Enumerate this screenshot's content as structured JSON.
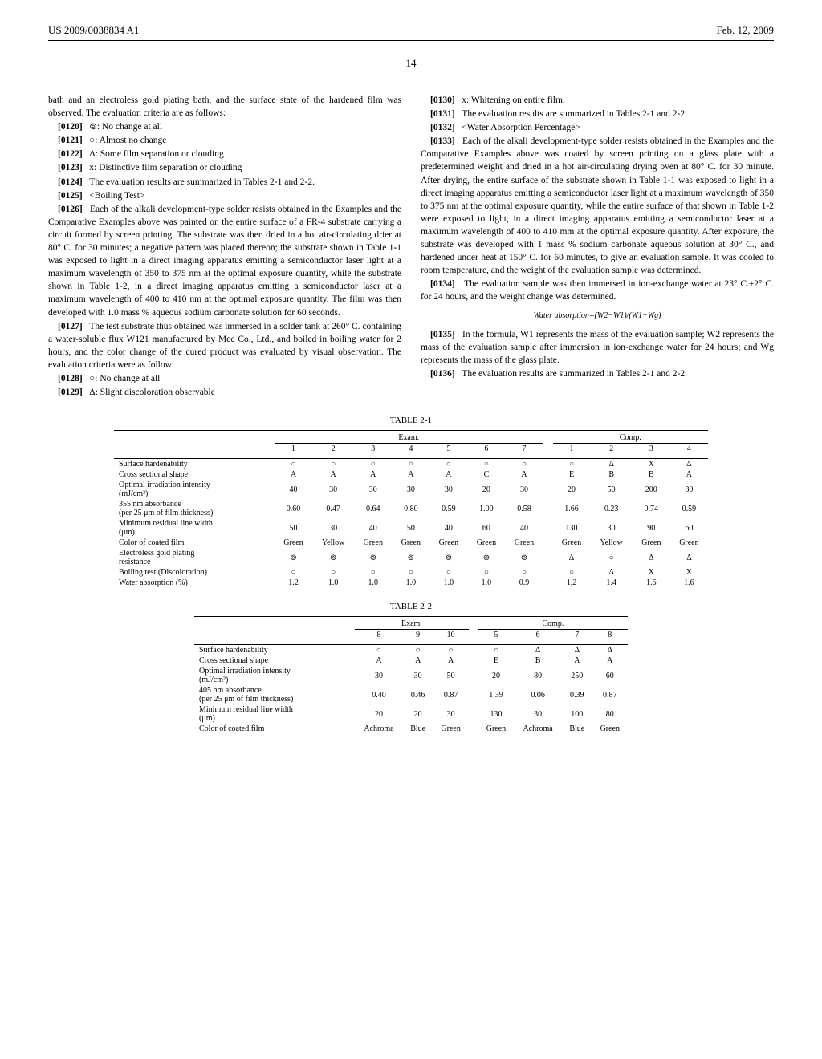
{
  "header": {
    "patent_no": "US 2009/0038834 A1",
    "date": "Feb. 12, 2009"
  },
  "page_number": "14",
  "left_col": {
    "p_intro": "bath and an electroless gold plating bath, and the surface state of the hardened film was observed. The evaluation criteria are as follows:",
    "p0120": {
      "num": "[0120]",
      "text": "⊚: No change at all"
    },
    "p0121": {
      "num": "[0121]",
      "text": "○: Almost no change"
    },
    "p0122": {
      "num": "[0122]",
      "text": "Δ: Some film separation or clouding"
    },
    "p0123": {
      "num": "[0123]",
      "text": "x: Distinctive film separation or clouding"
    },
    "p0124": {
      "num": "[0124]",
      "text": "The evaluation results are summarized in Tables 2-1 and 2-2."
    },
    "p0125": {
      "num": "[0125]",
      "text": "<Boiling Test>"
    },
    "p0126": {
      "num": "[0126]",
      "text": "Each of the alkali development-type solder resists obtained in the Examples and the Comparative Examples above was painted on the entire surface of a FR-4 substrate carrying a circuit formed by screen printing. The substrate was then dried in a hot air-circulating drier at 80° C. for 30 minutes; a negative pattern was placed thereon; the substrate shown in Table 1-1 was exposed to light in a direct imaging apparatus emitting a semiconductor laser light at a maximum wavelength of 350 to 375 nm at the optimal exposure quantity, while the substrate shown in Table 1-2, in a direct imaging apparatus emitting a semiconductor laser at a maximum wavelength of 400 to 410 nm at the optimal exposure quantity. The film was then developed with 1.0 mass % aqueous sodium carbonate solution for 60 seconds."
    },
    "p0127": {
      "num": "[0127]",
      "text": "The test substrate thus obtained was immersed in a solder tank at 260° C. containing a water-soluble flux W121 manufactured by Mec Co., Ltd., and boiled in boiling water for 2 hours, and the color change of the cured product was evaluated by visual observation. The evaluation criteria were as follow:"
    },
    "p0128": {
      "num": "[0128]",
      "text": "○: No change at all"
    },
    "p0129": {
      "num": "[0129]",
      "text": "Δ: Slight discoloration observable"
    }
  },
  "right_col": {
    "p0130": {
      "num": "[0130]",
      "text": "x: Whitening on entire film."
    },
    "p0131": {
      "num": "[0131]",
      "text": "The evaluation results are summarized in Tables 2-1 and 2-2."
    },
    "p0132": {
      "num": "[0132]",
      "text": "<Water Absorption Percentage>"
    },
    "p0133": {
      "num": "[0133]",
      "text": "Each of the alkali development-type solder resists obtained in the Examples and the Comparative Examples above was coated by screen printing on a glass plate with a predetermined weight and dried in a hot air-circulating drying oven at 80° C. for 30 minute. After drying, the entire surface of the substrate shown in Table 1-1 was exposed to light in a direct imaging apparatus emitting a semiconductor laser light at a maximum wavelength of 350 to 375 nm at the optimal exposure quantity, while the entire surface of that shown in Table 1-2 were exposed to light, in a direct imaging apparatus emitting a semiconductor laser at a maximum wavelength of 400 to 410 mm at the optimal exposure quantity. After exposure, the substrate was developed with 1 mass % sodium carbonate aqueous solution at 30° C., and hardened under heat at 150° C. for 60 minutes, to give an evaluation sample. It was cooled to room temperature, and the weight of the evaluation sample was determined."
    },
    "p0134": {
      "num": "[0134]",
      "text": "The evaluation sample was then immersed in ion-exchange water at 23° C.±2° C. for 24 hours, and the weight change was determined."
    },
    "formula": "Water absorption=(W2−W1)/(W1−Wg)",
    "p0135": {
      "num": "[0135]",
      "text": "In the formula, W1 represents the mass of the evaluation sample; W2 represents the mass of the evaluation sample after immersion in ion-exchange water for 24 hours; and Wg represents the mass of the glass plate."
    },
    "p0136": {
      "num": "[0136]",
      "text": "The evaluation results are summarized in Tables 2-1 and 2-2."
    }
  },
  "table21": {
    "title": "TABLE 2-1",
    "group1": "Exam.",
    "group2": "Comp.",
    "cols_exam": [
      "1",
      "2",
      "3",
      "4",
      "5",
      "6",
      "7"
    ],
    "cols_comp": [
      "1",
      "2",
      "3",
      "4"
    ],
    "rows": [
      {
        "label": "Surface hardenability",
        "exam": [
          "○",
          "○",
          "○",
          "○",
          "○",
          "○",
          "○"
        ],
        "comp": [
          "○",
          "Δ",
          "X",
          "Δ"
        ]
      },
      {
        "label": "Cross sectional shape",
        "exam": [
          "A",
          "A",
          "A",
          "A",
          "A",
          "C",
          "A"
        ],
        "comp": [
          "E",
          "B",
          "B",
          "A"
        ]
      },
      {
        "label": "Optimal irradiation intensity (mJ/cm²)",
        "exam": [
          "40",
          "30",
          "30",
          "30",
          "30",
          "20",
          "30"
        ],
        "comp": [
          "20",
          "50",
          "200",
          "80"
        ]
      },
      {
        "label": "355 nm absorbance (per 25 μm of film thickness)",
        "exam": [
          "0.60",
          "0.47",
          "0.64",
          "0.80",
          "0.59",
          "1.00",
          "0.58"
        ],
        "comp": [
          "1.66",
          "0.23",
          "0.74",
          "0.59"
        ]
      },
      {
        "label": "Minimum residual line width (μm)",
        "exam": [
          "50",
          "30",
          "40",
          "50",
          "40",
          "60",
          "40"
        ],
        "comp": [
          "130",
          "30",
          "90",
          "60"
        ]
      },
      {
        "label": "Color of coated film",
        "exam": [
          "Green",
          "Yellow",
          "Green",
          "Green",
          "Green",
          "Green",
          "Green"
        ],
        "comp": [
          "Green",
          "Yellow",
          "Green",
          "Green"
        ]
      },
      {
        "label": "Electroless gold plating resistance",
        "exam": [
          "⊚",
          "⊚",
          "⊚",
          "⊚",
          "⊚",
          "⊚",
          "⊚"
        ],
        "comp": [
          "Δ",
          "○",
          "Δ",
          "Δ"
        ]
      },
      {
        "label": "Boiling test (Discoloration)",
        "exam": [
          "○",
          "○",
          "○",
          "○",
          "○",
          "○",
          "○"
        ],
        "comp": [
          "○",
          "Δ",
          "X",
          "X"
        ]
      },
      {
        "label": "Water absorption (%)",
        "exam": [
          "1.2",
          "1.0",
          "1.0",
          "1.0",
          "1.0",
          "1.0",
          "0.9"
        ],
        "comp": [
          "1.2",
          "1.4",
          "1.6",
          "1.6"
        ]
      }
    ]
  },
  "table22": {
    "title": "TABLE 2-2",
    "group1": "Exam.",
    "group2": "Comp.",
    "cols_exam": [
      "8",
      "9",
      "10"
    ],
    "cols_comp": [
      "5",
      "6",
      "7",
      "8"
    ],
    "rows": [
      {
        "label": "Surface hardenability",
        "exam": [
          "○",
          "○",
          "○"
        ],
        "comp": [
          "○",
          "Δ",
          "Δ",
          "Δ"
        ]
      },
      {
        "label": "Cross sectional shape",
        "exam": [
          "A",
          "A",
          "A"
        ],
        "comp": [
          "E",
          "B",
          "A",
          "A"
        ]
      },
      {
        "label": "Optimal irradiation intensity (mJ/cm²)",
        "exam": [
          "30",
          "30",
          "50"
        ],
        "comp": [
          "20",
          "80",
          "250",
          "60"
        ]
      },
      {
        "label": "405 nm absorbance (per 25 μm of film thickness)",
        "exam": [
          "0.40",
          "0.46",
          "0.87"
        ],
        "comp": [
          "1.39",
          "0.06",
          "0.39",
          "0.87"
        ]
      },
      {
        "label": "Minimum residual line width (μm)",
        "exam": [
          "20",
          "20",
          "30"
        ],
        "comp": [
          "130",
          "30",
          "100",
          "80"
        ]
      },
      {
        "label": "Color of coated film",
        "exam": [
          "Achroma",
          "Blue",
          "Green"
        ],
        "comp": [
          "Green",
          "Achroma",
          "Blue",
          "Green"
        ]
      }
    ]
  }
}
